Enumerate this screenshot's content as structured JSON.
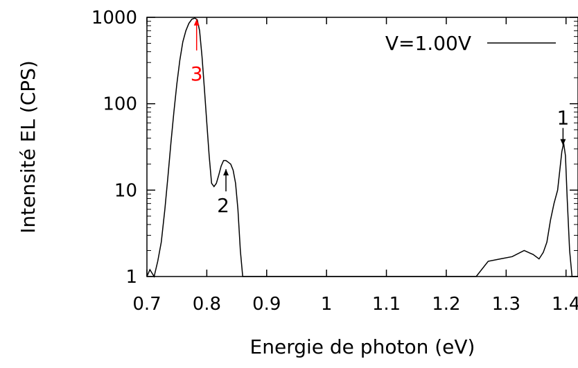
{
  "chart_data": {
    "type": "line",
    "title": "",
    "xlabel": "Energie de photon (eV)",
    "ylabel": "Intensité EL (CPS)",
    "xlim": [
      0.7,
      1.42
    ],
    "ylim": [
      1,
      1000
    ],
    "yscale": "log",
    "grid": false,
    "legend_position": "top-right",
    "x_ticks": [
      "0.7",
      "0.8",
      "0.9",
      "1",
      "1.1",
      "1.2",
      "1.3",
      "1.4"
    ],
    "x_tick_values": [
      0.7,
      0.8,
      0.9,
      1.0,
      1.1,
      1.2,
      1.3,
      1.4
    ],
    "y_ticks": [
      "1",
      "10",
      "100",
      "1000"
    ],
    "y_tick_values": [
      1,
      10,
      100,
      1000
    ],
    "series": [
      {
        "name": "V=1.00V",
        "color": "#000000",
        "x": [
          0.7,
          0.705,
          0.712,
          0.718,
          0.724,
          0.73,
          0.735,
          0.74,
          0.745,
          0.75,
          0.755,
          0.76,
          0.765,
          0.77,
          0.775,
          0.78,
          0.784,
          0.788,
          0.792,
          0.796,
          0.8,
          0.804,
          0.808,
          0.812,
          0.816,
          0.82,
          0.824,
          0.828,
          0.832,
          0.836,
          0.84,
          0.844,
          0.848,
          0.852,
          0.856,
          0.86,
          0.87,
          0.9,
          0.95,
          1.0,
          1.05,
          1.1,
          1.15,
          1.2,
          1.25,
          1.27,
          1.29,
          1.31,
          1.33,
          1.345,
          1.355,
          1.362,
          1.368,
          1.374,
          1.38,
          1.386,
          1.39,
          1.393,
          1.396,
          1.399,
          1.402,
          1.406,
          1.41,
          1.42
        ],
        "y": [
          1.0,
          1.2,
          1.0,
          1.5,
          2.5,
          6,
          14,
          35,
          80,
          170,
          320,
          520,
          700,
          850,
          950,
          980,
          940,
          700,
          350,
          150,
          60,
          25,
          12,
          11,
          12,
          15,
          19,
          22,
          22,
          21,
          20,
          17,
          12,
          6,
          2,
          1.0,
          1.0,
          1.0,
          1.0,
          1.0,
          1.0,
          1.0,
          1.0,
          1.0,
          1.0,
          1.5,
          1.6,
          1.7,
          2.0,
          1.8,
          1.6,
          1.9,
          2.5,
          4.5,
          7,
          10,
          18,
          28,
          35,
          25,
          8,
          2,
          1.0,
          1.0
        ]
      }
    ],
    "annotations": [
      {
        "text": "1",
        "x": 1.395,
        "y": 33,
        "color": "#000000"
      },
      {
        "text": "2",
        "x": 0.832,
        "y": 21,
        "color": "#000000"
      },
      {
        "text": "3",
        "x": 0.783,
        "y": 950,
        "color": "#ff0000"
      }
    ]
  }
}
